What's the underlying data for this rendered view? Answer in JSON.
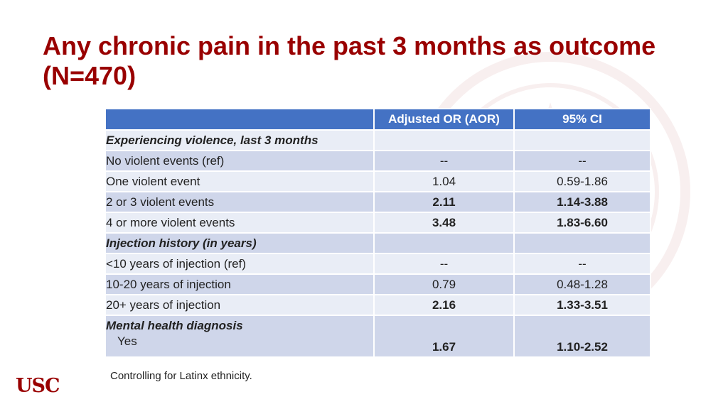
{
  "title": "Any chronic pain in the past 3 months as outcome (N=470)",
  "table": {
    "headers": [
      "",
      "Adjusted OR (AOR)",
      "95% CI"
    ],
    "rows": [
      {
        "label": "Experiencing violence, last 3 months",
        "aor": "",
        "ci": ""
      },
      {
        "label": "No violent events (ref)",
        "aor": "--",
        "ci": "--"
      },
      {
        "label": "One violent event",
        "aor": "1.04",
        "ci": "0.59-1.86"
      },
      {
        "label": "2 or 3  violent events",
        "aor": "2.11",
        "ci": "1.14-3.88"
      },
      {
        "label": "4 or more violent events",
        "aor": "3.48",
        "ci": "1.83-6.60"
      },
      {
        "label": "Injection history (in years)",
        "aor": "",
        "ci": ""
      },
      {
        "label": "<10 years of injection (ref)",
        "aor": "--",
        "ci": "--"
      },
      {
        "label": "10-20 years of injection",
        "aor": "0.79",
        "ci": "0.48-1.28"
      },
      {
        "label": "20+ years of injection",
        "aor": "2.16",
        "ci": "1.33-3.51"
      },
      {
        "label": "Mental health diagnosis",
        "sublabel": "Yes",
        "aor": "1.67",
        "ci": "1.10-2.52"
      }
    ]
  },
  "footnote": "Controlling for Latinx ethnicity.",
  "logo": "USC"
}
